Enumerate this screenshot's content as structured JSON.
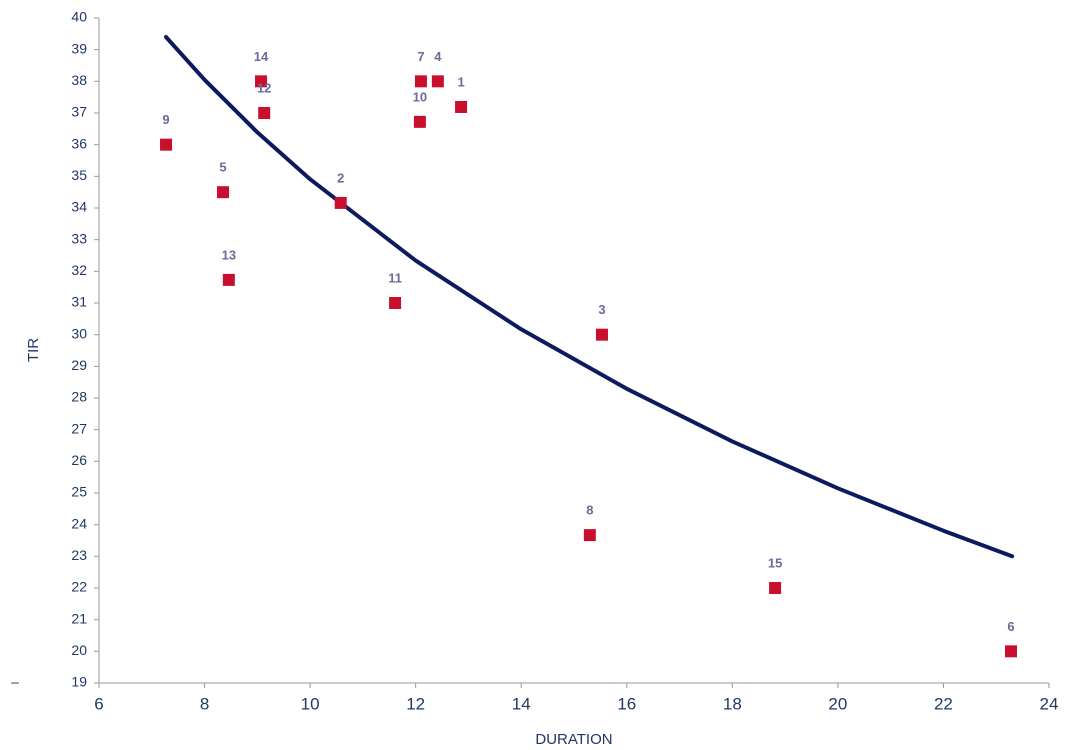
{
  "chart_data": {
    "type": "scatter",
    "x_label": "DURATION",
    "y_label": "TIR",
    "annotation": "–",
    "xlim": [
      6,
      24
    ],
    "xticks": [
      6,
      8,
      10,
      12,
      14,
      16,
      18,
      20,
      22,
      24
    ],
    "ylim": [
      19,
      40
    ],
    "yticks": [
      19,
      20,
      21,
      22,
      23,
      24,
      25,
      26,
      27,
      28,
      29,
      30,
      31,
      32,
      33,
      34,
      35,
      36,
      37,
      38,
      39,
      40
    ],
    "points": {
      "color": "#c8102e",
      "labels": [
        "9",
        "5",
        "13",
        "14",
        "12",
        "2",
        "11",
        "7",
        "10",
        "4",
        "1",
        "3",
        "8",
        "15",
        "6"
      ],
      "x": [
        7.27,
        8.35,
        8.46,
        9.07,
        9.13,
        10.58,
        11.61,
        12.1,
        12.08,
        12.42,
        12.86,
        15.53,
        15.3,
        18.81,
        23.28
      ],
      "values": [
        36,
        34.5,
        31.73,
        38,
        37,
        34.16,
        31,
        38,
        36.72,
        38,
        37.19,
        30,
        23.67,
        22,
        20
      ]
    },
    "trend": {
      "color": "#0d1b5e",
      "x": [
        7.27,
        8,
        9,
        10,
        12,
        14,
        16,
        18,
        20,
        22,
        23.3
      ],
      "values": [
        39.4,
        38.05,
        36.39,
        34.91,
        32.34,
        30.17,
        28.29,
        26.63,
        25.15,
        23.81,
        23.0
      ]
    }
  }
}
